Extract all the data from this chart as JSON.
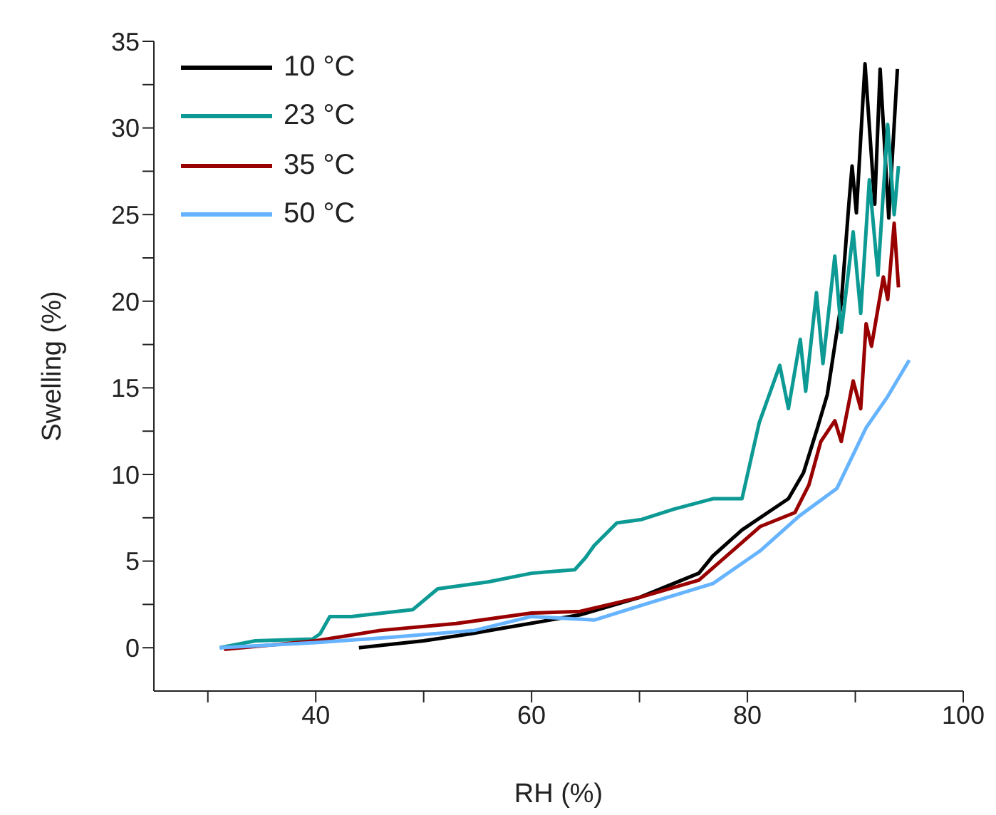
{
  "chart_data": {
    "type": "line",
    "xlabel": "RH (%)",
    "ylabel": "Swelling (%)",
    "xlim": [
      25,
      100
    ],
    "ylim": [
      -2.5,
      35
    ],
    "xticks": [
      {
        "value": 30,
        "label": null
      },
      40,
      {
        "value": 50,
        "label": null
      },
      60,
      {
        "value": 70,
        "label": null
      },
      80,
      {
        "value": 90,
        "label": null
      },
      100
    ],
    "yticks": [
      0,
      {
        "value": 2.5,
        "label": null
      },
      5,
      {
        "value": 7.5,
        "label": null
      },
      10,
      {
        "value": 12.5,
        "label": null
      },
      15,
      {
        "value": 17.5,
        "label": null
      },
      20,
      {
        "value": 22.5,
        "label": null
      },
      25,
      {
        "value": 27.5,
        "label": null
      },
      30,
      {
        "value": 32.5,
        "label": null
      },
      35
    ],
    "grid": false,
    "legend": "top left",
    "marker": "none",
    "line_style": "solid",
    "series": [
      {
        "name": "10 °C",
        "color": "#000000",
        "x": [
          44,
          50,
          54.3,
          58,
          64.5,
          70,
          75.5,
          76.8,
          79.5,
          83.8,
          85.2,
          86.5,
          87.4,
          88.7,
          89.4,
          89.7,
          90.1,
          90.9,
          91.8,
          92.3,
          93.1,
          93.9
        ],
        "values": [
          0,
          0.4,
          0.8,
          1.2,
          1.9,
          2.9,
          4.3,
          5.3,
          6.8,
          8.6,
          10.1,
          12.7,
          14.6,
          19.9,
          25.6,
          27.8,
          25.1,
          33.7,
          25.6,
          33.4,
          24.8,
          33.4
        ]
      },
      {
        "name": "23 °C",
        "color": "#0e9a94",
        "x": [
          31.1,
          34.4,
          39.7,
          40.4,
          41.3,
          43.3,
          49,
          51.3,
          56,
          60,
          64,
          65,
          65.8,
          67.9,
          70.2,
          73.2,
          76.8,
          79.5,
          81.1,
          83,
          83.8,
          84.9,
          85.4,
          86.4,
          87,
          88.1,
          88.7,
          89.8,
          90.5,
          91.3,
          92.1,
          93,
          93.6,
          94
        ],
        "values": [
          0,
          0.4,
          0.5,
          0.8,
          1.8,
          1.8,
          2.2,
          3.4,
          3.8,
          4.3,
          4.5,
          5.2,
          5.9,
          7.2,
          7.4,
          8,
          8.6,
          8.6,
          13,
          16.3,
          13.8,
          17.8,
          14.8,
          20.5,
          16.4,
          22.6,
          18.2,
          24,
          19.3,
          27,
          21.5,
          30.2,
          25,
          27.8
        ]
      },
      {
        "name": "35 °C",
        "color": "#990000",
        "x": [
          31.5,
          40,
          46,
          53,
          60,
          64.5,
          70,
          75.5,
          81.2,
          84.4,
          85.7,
          86.8,
          88.1,
          88.7,
          89.8,
          90.5,
          91,
          91.5,
          92.6,
          93,
          93.6,
          94
        ],
        "values": [
          -0.1,
          0.4,
          1,
          1.4,
          2,
          2.1,
          2.9,
          3.9,
          7,
          7.8,
          9.4,
          11.9,
          13.1,
          11.9,
          15.4,
          13.8,
          18.7,
          17.4,
          21.4,
          20.1,
          24.5,
          20.8
        ]
      },
      {
        "name": "50 °C",
        "color": "#66b3ff",
        "x": [
          31.1,
          40,
          47,
          54.7,
          60,
          65.8,
          71,
          76.8,
          81.2,
          84.8,
          88.3,
          91,
          93,
          95
        ],
        "values": [
          0,
          0.3,
          0.6,
          1,
          1.8,
          1.6,
          2.6,
          3.7,
          5.6,
          7.6,
          9.2,
          12.7,
          14.5,
          16.6
        ]
      }
    ]
  }
}
